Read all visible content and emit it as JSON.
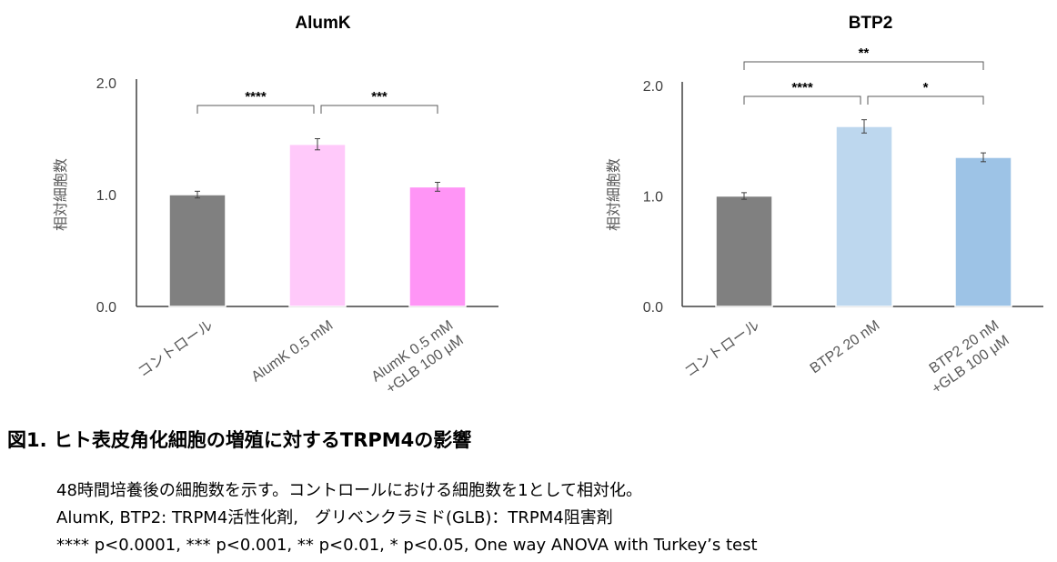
{
  "chart_data": [
    {
      "type": "bar",
      "title": "AlumK",
      "ylabel": "相対細胞数",
      "ylim": [
        0,
        2
      ],
      "yticks": [
        "0.0",
        "1.0",
        "2.0"
      ],
      "categories": [
        [
          "コントロール"
        ],
        [
          "AlumK 0.5 mM"
        ],
        [
          "AlumK 0.5 mM",
          "+GLB 100 μM"
        ]
      ],
      "values": [
        1.0,
        1.45,
        1.07
      ],
      "errors": [
        0.03,
        0.05,
        0.04
      ],
      "colors": [
        "#808080",
        "#ffc9fa",
        "#ff95f6"
      ],
      "significance": [
        {
          "from": 0,
          "to": 1,
          "label": "****",
          "level": 0
        },
        {
          "from": 1,
          "to": 2,
          "label": "***",
          "level": 0
        }
      ]
    },
    {
      "type": "bar",
      "title": "BTP2",
      "ylabel": "相対細胞数",
      "ylim": [
        0,
        2
      ],
      "yticks": [
        "0.0",
        "1.0",
        "2.0"
      ],
      "categories": [
        [
          "コントロール"
        ],
        [
          "BTP2 20 nM"
        ],
        [
          "BTP2 20 nM",
          "+GLB 100 μM"
        ]
      ],
      "values": [
        1.0,
        1.63,
        1.35
      ],
      "errors": [
        0.03,
        0.06,
        0.04
      ],
      "colors": [
        "#808080",
        "#bdd7ee",
        "#9dc3e6"
      ],
      "significance": [
        {
          "from": 0,
          "to": 1,
          "label": "****",
          "level": 0
        },
        {
          "from": 1,
          "to": 2,
          "label": "*",
          "level": 0
        },
        {
          "from": 0,
          "to": 2,
          "label": "**",
          "level": 1
        }
      ]
    }
  ],
  "caption": "図1. ヒト表皮角化細胞の増殖に対するTRPM4の影響",
  "notes": [
    "48時間培養後の細胞数を示す。コントロールにおける細胞数を1として相対化。",
    "AlumK, BTP2: TRPM4活性化剤,　グリベンクラミド(GLB)：TRPM4阻害剤",
    "**** p<0.0001, *** p<0.001, ** p<0.01, * p<0.05, One way ANOVA with Turkey’s test"
  ]
}
